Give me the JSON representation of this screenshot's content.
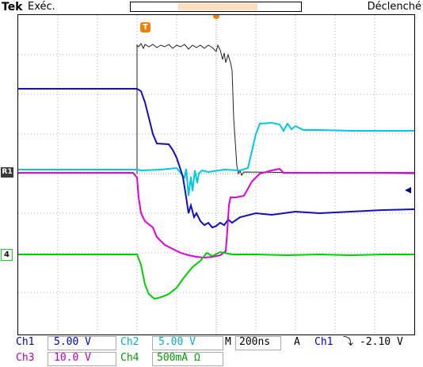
{
  "header": {
    "brand": "Tek",
    "status": "Exéc.",
    "trigger_mode": "Déclenché",
    "trigger_marker": "T"
  },
  "markers": {
    "ref1": "R1",
    "ch4": "4"
  },
  "readouts": {
    "ch1_label": "Ch1",
    "ch1_scale": "5.00 V",
    "ch2_label": "Ch2",
    "ch2_scale": "5.00 V",
    "ch3_label": "Ch3",
    "ch3_scale": "10.0 V",
    "ch4_label": "Ch4",
    "ch4_scale": "500mA Ω",
    "timebase_label": "M",
    "timebase": "200ns",
    "trigger_label": "A",
    "trigger_source": "Ch1",
    "trigger_slope": "⤵",
    "trigger_level": "-2.10 V"
  },
  "colors": {
    "ch1": "#0000cc",
    "ch2": "#00c8e0",
    "ch3": "#e000e0",
    "ch4": "#00d000",
    "ref": "#222222",
    "trigger": "#f08000"
  }
}
